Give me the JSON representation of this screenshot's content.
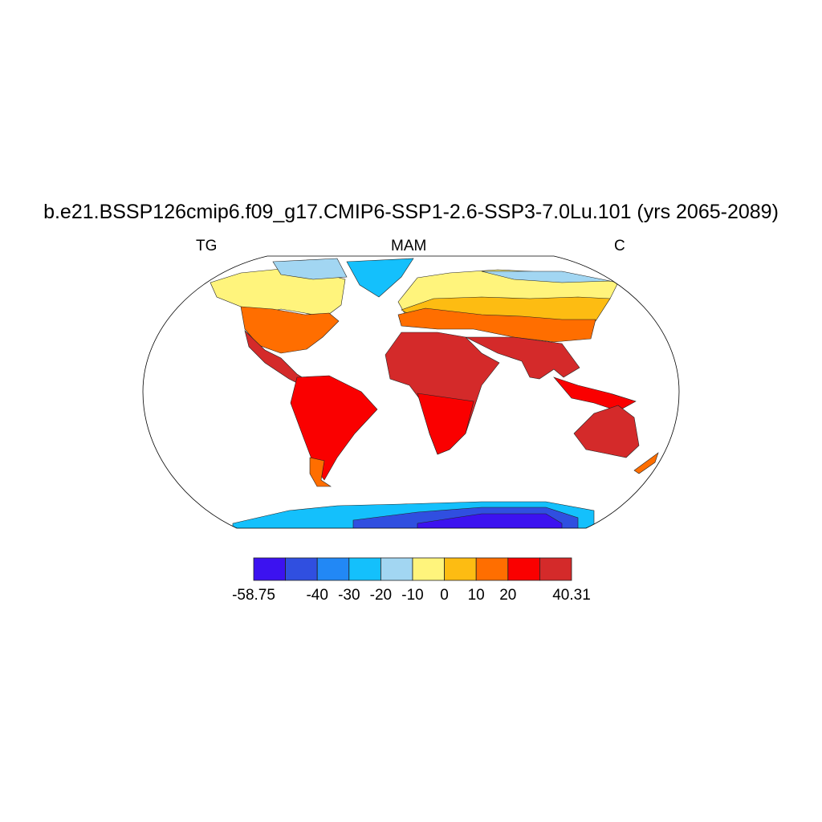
{
  "chart_data": {
    "type": "map",
    "projection": "Robinson",
    "title": "b.e21.BSSP126cmip6.f09_g17.CMIP6-SSP1-2.6-SSP3-7.0Lu.101 (yrs 2065-2089)",
    "left_label": "TG",
    "center_label": "MAM",
    "right_label": "C",
    "colorbar": {
      "levels": [
        -58.75,
        -50,
        -40,
        -30,
        -20,
        -10,
        0,
        10,
        20,
        30,
        40.31
      ],
      "tick_labels": [
        "-58.75",
        "-40",
        "-30",
        "-20",
        "-10",
        "0",
        "10",
        "20",
        "40.31"
      ],
      "colors": [
        "#3c12f0",
        "#304fe0",
        "#2288f5",
        "#14c0fc",
        "#a2d6f2",
        "#fff47c",
        "#fdbc12",
        "#ff6e00",
        "#fa0000",
        "#d42a2a"
      ],
      "placement": "bottom"
    }
  }
}
